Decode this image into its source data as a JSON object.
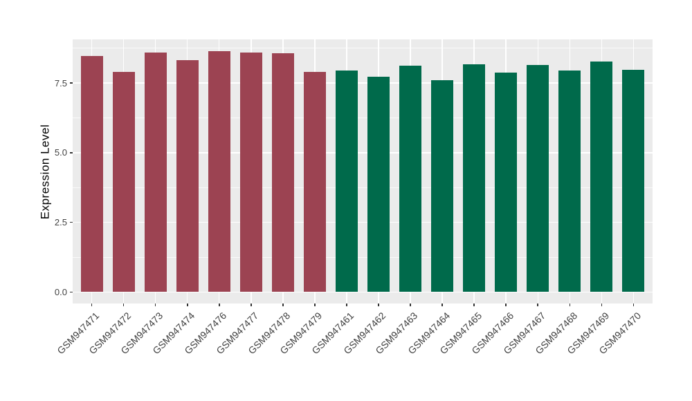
{
  "chart_data": {
    "type": "bar",
    "title": "",
    "xlabel": "",
    "ylabel": "Expression Level",
    "ylim": [
      -0.4,
      9.07
    ],
    "grid": true,
    "legend_position": "none",
    "yticks": [
      {
        "value": 0.0,
        "label": "0.0"
      },
      {
        "value": 2.5,
        "label": "2.5"
      },
      {
        "value": 5.0,
        "label": "5.0"
      },
      {
        "value": 7.5,
        "label": "7.5"
      }
    ],
    "yticks_minor": [
      1.25,
      3.75,
      6.25,
      8.75
    ],
    "group_colors": {
      "maroon": "#9C4352",
      "green": "#006A4B"
    },
    "bars": [
      {
        "label": "GSM947471",
        "value": 8.48,
        "group": "maroon"
      },
      {
        "label": "GSM947472",
        "value": 7.9,
        "group": "maroon"
      },
      {
        "label": "GSM947473",
        "value": 8.6,
        "group": "maroon"
      },
      {
        "label": "GSM947474",
        "value": 8.32,
        "group": "maroon"
      },
      {
        "label": "GSM947476",
        "value": 8.66,
        "group": "maroon"
      },
      {
        "label": "GSM947477",
        "value": 8.61,
        "group": "maroon"
      },
      {
        "label": "GSM947478",
        "value": 8.57,
        "group": "maroon"
      },
      {
        "label": "GSM947479",
        "value": 7.91,
        "group": "maroon"
      },
      {
        "label": "GSM947461",
        "value": 7.95,
        "group": "green"
      },
      {
        "label": "GSM947462",
        "value": 7.73,
        "group": "green"
      },
      {
        "label": "GSM947463",
        "value": 8.12,
        "group": "green"
      },
      {
        "label": "GSM947464",
        "value": 7.6,
        "group": "green"
      },
      {
        "label": "GSM947465",
        "value": 8.18,
        "group": "green"
      },
      {
        "label": "GSM947466",
        "value": 7.87,
        "group": "green"
      },
      {
        "label": "GSM947467",
        "value": 8.16,
        "group": "green"
      },
      {
        "label": "GSM947468",
        "value": 7.95,
        "group": "green"
      },
      {
        "label": "GSM947469",
        "value": 8.27,
        "group": "green"
      },
      {
        "label": "GSM947470",
        "value": 7.98,
        "group": "green"
      }
    ],
    "style": {
      "background": "#FFFFFF",
      "panel_background": "#EBEBEB",
      "grid_major_color": "#FFFFFF",
      "grid_minor_color": "#FFFFFF",
      "tick_mark_color": "#333333",
      "axis_text_color": "#404040",
      "axis_title_color": "#000000"
    }
  }
}
